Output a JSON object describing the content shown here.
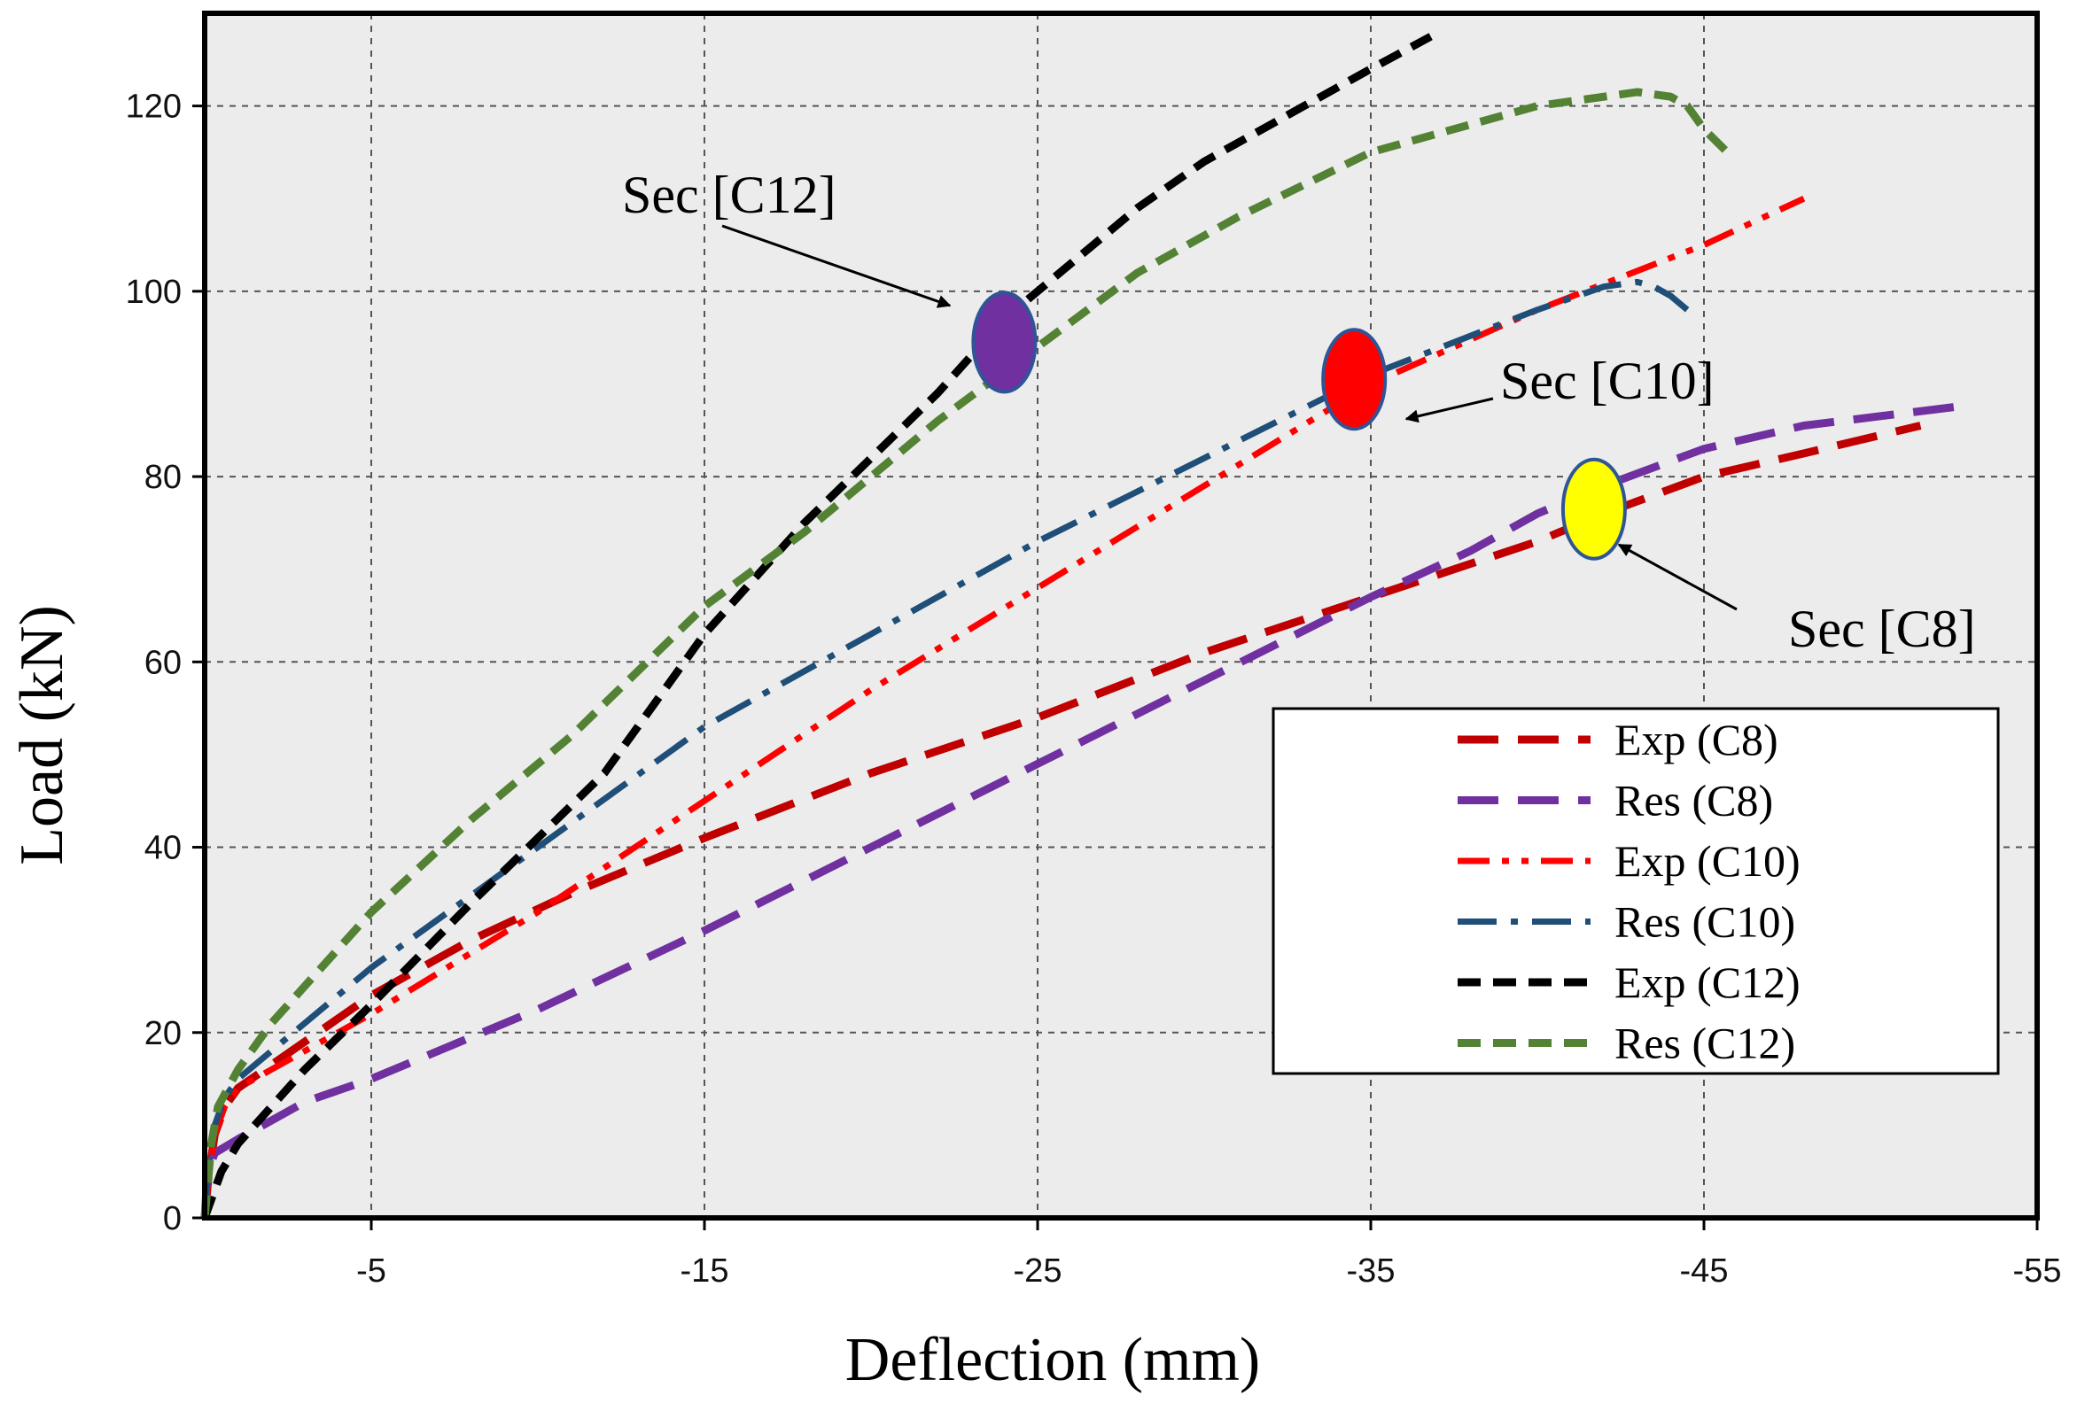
{
  "chart_data": {
    "type": "line",
    "title": "",
    "xlabel": "Deflection (mm)",
    "ylabel": "Load (kN)",
    "xlim": [
      0,
      -55
    ],
    "ylim": [
      0,
      130
    ],
    "xticks": [
      -5,
      -15,
      -25,
      -35,
      -45,
      -55
    ],
    "yticks": [
      0,
      20,
      40,
      60,
      80,
      100,
      120
    ],
    "xtick_labels": [
      "-5",
      "-15",
      "-25",
      "-35",
      "-45",
      "-55"
    ],
    "ytick_labels": [
      "0",
      "20",
      "40",
      "60",
      "80",
      "100",
      "120"
    ],
    "grid": true,
    "legend_position": "bottom-right",
    "series": [
      {
        "name": "Exp  (C8)",
        "color": "#c00000",
        "dash": "dash-long",
        "points": [
          [
            0,
            0
          ],
          [
            -0.1,
            4
          ],
          [
            -0.3,
            9
          ],
          [
            -0.6,
            12
          ],
          [
            -1,
            14
          ],
          [
            -2,
            16.5
          ],
          [
            -3,
            19
          ],
          [
            -5,
            24
          ],
          [
            -8,
            30
          ],
          [
            -11,
            35
          ],
          [
            -15,
            41
          ],
          [
            -20,
            48
          ],
          [
            -25,
            54
          ],
          [
            -30,
            61
          ],
          [
            -35,
            67
          ],
          [
            -40,
            73
          ],
          [
            -42,
            76
          ],
          [
            -45,
            80
          ],
          [
            -48,
            82.5
          ],
          [
            -51.5,
            85.5
          ]
        ]
      },
      {
        "name": "Res (C8)",
        "color": "#7030a0",
        "dash": "dash-long",
        "points": [
          [
            0,
            0
          ],
          [
            -0.05,
            3
          ],
          [
            -0.1,
            5
          ],
          [
            -0.3,
            7
          ],
          [
            -1,
            8.5
          ],
          [
            -2,
            10.5
          ],
          [
            -3,
            12.5
          ],
          [
            -5,
            15
          ],
          [
            -10,
            22.5
          ],
          [
            -15,
            31
          ],
          [
            -20,
            40
          ],
          [
            -25,
            49
          ],
          [
            -30,
            58
          ],
          [
            -35,
            67
          ],
          [
            -38,
            72
          ],
          [
            -40,
            76
          ],
          [
            -42,
            79
          ],
          [
            -45,
            83
          ],
          [
            -48,
            85.5
          ],
          [
            -52.5,
            87.5
          ]
        ]
      },
      {
        "name": "Exp (C10)",
        "color": "#ff0000",
        "dash": "dash-dot-dot",
        "points": [
          [
            0,
            0
          ],
          [
            -0.1,
            4
          ],
          [
            -0.3,
            9
          ],
          [
            -0.6,
            12
          ],
          [
            -1,
            14
          ],
          [
            -2,
            16
          ],
          [
            -3,
            18
          ],
          [
            -5,
            22
          ],
          [
            -10,
            33
          ],
          [
            -15,
            45
          ],
          [
            -20,
            57
          ],
          [
            -25,
            68
          ],
          [
            -30,
            79
          ],
          [
            -35,
            90
          ],
          [
            -40,
            98
          ],
          [
            -45,
            105
          ],
          [
            -48,
            110
          ]
        ]
      },
      {
        "name": "Res (C10)",
        "color": "#1f4e79",
        "dash": "dash-dot",
        "points": [
          [
            0,
            0
          ],
          [
            -0.1,
            5
          ],
          [
            -0.3,
            10
          ],
          [
            -0.6,
            13
          ],
          [
            -1,
            15
          ],
          [
            -2,
            18
          ],
          [
            -3,
            21
          ],
          [
            -5,
            27
          ],
          [
            -10,
            40
          ],
          [
            -15,
            53
          ],
          [
            -20,
            63
          ],
          [
            -25,
            73
          ],
          [
            -30,
            82
          ],
          [
            -35,
            91
          ],
          [
            -40,
            98
          ],
          [
            -42,
            100.5
          ],
          [
            -43,
            101
          ],
          [
            -43.5,
            100.5
          ],
          [
            -44,
            99.5
          ],
          [
            -44.5,
            98
          ]
        ]
      },
      {
        "name": "Exp (C12)",
        "color": "#000000",
        "dash": "dash-short",
        "points": [
          [
            0,
            0
          ],
          [
            -0.2,
            2
          ],
          [
            -0.5,
            5
          ],
          [
            -1,
            8
          ],
          [
            -2,
            12
          ],
          [
            -3,
            16
          ],
          [
            -5,
            23
          ],
          [
            -8,
            34
          ],
          [
            -10,
            41
          ],
          [
            -12,
            48
          ],
          [
            -15,
            63
          ],
          [
            -18,
            75
          ],
          [
            -20,
            82
          ],
          [
            -22,
            89
          ],
          [
            -24,
            97
          ],
          [
            -26,
            103
          ],
          [
            -28,
            109
          ],
          [
            -30,
            114
          ],
          [
            -33,
            120
          ],
          [
            -35,
            124
          ],
          [
            -36.8,
            127.5
          ]
        ]
      },
      {
        "name": "Res (C12)",
        "color": "#548235",
        "dash": "dash-short",
        "points": [
          [
            0,
            0
          ],
          [
            -0.1,
            4
          ],
          [
            -0.2,
            8
          ],
          [
            -0.4,
            12
          ],
          [
            -1,
            16
          ],
          [
            -2,
            21
          ],
          [
            -3,
            25
          ],
          [
            -5,
            33
          ],
          [
            -8,
            43
          ],
          [
            -11,
            52
          ],
          [
            -15,
            66
          ],
          [
            -18,
            74
          ],
          [
            -20,
            80
          ],
          [
            -22,
            86
          ],
          [
            -25,
            94
          ],
          [
            -28,
            102
          ],
          [
            -31,
            108
          ],
          [
            -35,
            115
          ],
          [
            -40,
            120
          ],
          [
            -42,
            121
          ],
          [
            -43,
            121.5
          ],
          [
            -44,
            121
          ],
          [
            -44.5,
            120
          ],
          [
            -45,
            117.5
          ],
          [
            -45.7,
            115
          ]
        ]
      }
    ],
    "annotations": [
      {
        "text": "Sec [C12]",
        "target": [
          -24,
          94.5
        ],
        "marker_color": "#7030a0"
      },
      {
        "text": "Sec [C10]",
        "target": [
          -34.5,
          90.5
        ],
        "marker_color": "#ff0000"
      },
      {
        "text": "Sec [C8]",
        "target": [
          -41.7,
          76.5
        ],
        "marker_color": "#ffff00"
      }
    ]
  }
}
